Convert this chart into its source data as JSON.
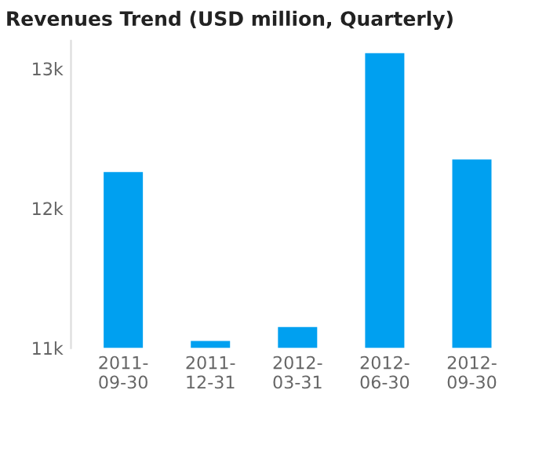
{
  "chart_data": {
    "type": "bar",
    "title": "Revenues Trend (USD million, Quarterly)",
    "categories": [
      "2011-\n09-30",
      "2011-\n12-31",
      "2012-\n03-31",
      "2012-\n06-30",
      "2012-\n09-30"
    ],
    "series": [
      {
        "color": "#00a0f0",
        "values": [
          12260,
          11050,
          11150,
          13110,
          12350
        ]
      }
    ],
    "ylim": [
      11000,
      13200
    ],
    "yticks": [
      {
        "value": 11000,
        "label": "11k"
      },
      {
        "value": 12000,
        "label": "12k"
      },
      {
        "value": 13000,
        "label": "13k"
      }
    ],
    "grid": false,
    "legend": false
  }
}
